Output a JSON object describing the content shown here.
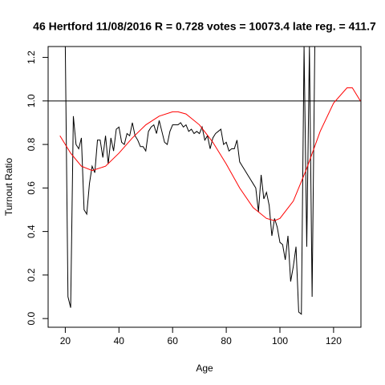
{
  "chart_data": {
    "type": "line",
    "title": "46 Hertford 11/08/2016 R = 0.728 votes = 10073.4 late reg. = 411.7",
    "x_label": "Age",
    "y_label": "Turnout Ratio",
    "xlim": [
      13.6,
      130.2
    ],
    "ylim": [
      -0.04,
      1.25
    ],
    "xticks": [
      20,
      40,
      60,
      80,
      100,
      120
    ],
    "yticks": [
      {
        "value": 0,
        "label": "0.0"
      },
      0.2,
      0.4,
      0.6,
      0.8,
      {
        "value": 1,
        "label": "1.0"
      },
      1.2
    ],
    "hline": 1,
    "series": [
      {
        "color": "#000000",
        "x": [
          20,
          21,
          22,
          23,
          24,
          25,
          26,
          27,
          28,
          29,
          30,
          31,
          32,
          33,
          34,
          35,
          36,
          37,
          38,
          39,
          40,
          41,
          42,
          43,
          44,
          45,
          46,
          47,
          48,
          49,
          50,
          51,
          52,
          53,
          54,
          55,
          56,
          57,
          58,
          59,
          60,
          61,
          62,
          63,
          64,
          65,
          66,
          67,
          68,
          69,
          70,
          71,
          72,
          73,
          74,
          75,
          76,
          77,
          78,
          79,
          80,
          81,
          82,
          83,
          84,
          85,
          86,
          87,
          88,
          89,
          90,
          91,
          92,
          93,
          94,
          95,
          96,
          97,
          98,
          99,
          100,
          101,
          102,
          103,
          104,
          105,
          106,
          107,
          108,
          109,
          110,
          111,
          112,
          113
        ],
        "values": [
          1.25,
          0.1,
          0.05,
          0.93,
          0.8,
          0.78,
          0.83,
          0.5,
          0.48,
          0.62,
          0.7,
          0.67,
          0.82,
          0.82,
          0.74,
          0.84,
          0.71,
          0.83,
          0.77,
          0.87,
          0.88,
          0.81,
          0.8,
          0.85,
          0.84,
          0.9,
          0.84,
          0.82,
          0.79,
          0.79,
          0.77,
          0.86,
          0.88,
          0.89,
          0.85,
          0.91,
          0.86,
          0.81,
          0.8,
          0.86,
          0.89,
          0.89,
          0.89,
          0.9,
          0.88,
          0.89,
          0.86,
          0.87,
          0.85,
          0.86,
          0.85,
          0.88,
          0.82,
          0.84,
          0.78,
          0.83,
          0.85,
          0.86,
          0.87,
          0.8,
          0.81,
          0.77,
          0.78,
          0.78,
          0.82,
          0.72,
          0.7,
          0.68,
          0.66,
          0.64,
          0.62,
          0.6,
          0.49,
          0.66,
          0.55,
          0.58,
          0.52,
          0.38,
          0.46,
          0.42,
          0.35,
          0.34,
          0.27,
          0.38,
          0.17,
          0.24,
          0.33,
          0.03,
          0.02,
          1.25,
          0.33,
          1.25,
          0.1,
          1.25
        ]
      },
      {
        "color": "#ff0000",
        "x": [
          18,
          22,
          26,
          30,
          35,
          40,
          45,
          50,
          55,
          60,
          62,
          65,
          70,
          75,
          80,
          85,
          90,
          95,
          98,
          100,
          105,
          110,
          115,
          120,
          125,
          127,
          130
        ],
        "values": [
          0.84,
          0.76,
          0.7,
          0.68,
          0.7,
          0.76,
          0.83,
          0.89,
          0.93,
          0.95,
          0.95,
          0.94,
          0.89,
          0.81,
          0.71,
          0.6,
          0.51,
          0.46,
          0.45,
          0.46,
          0.54,
          0.69,
          0.86,
          0.99,
          1.06,
          1.06,
          1.0
        ]
      }
    ]
  }
}
